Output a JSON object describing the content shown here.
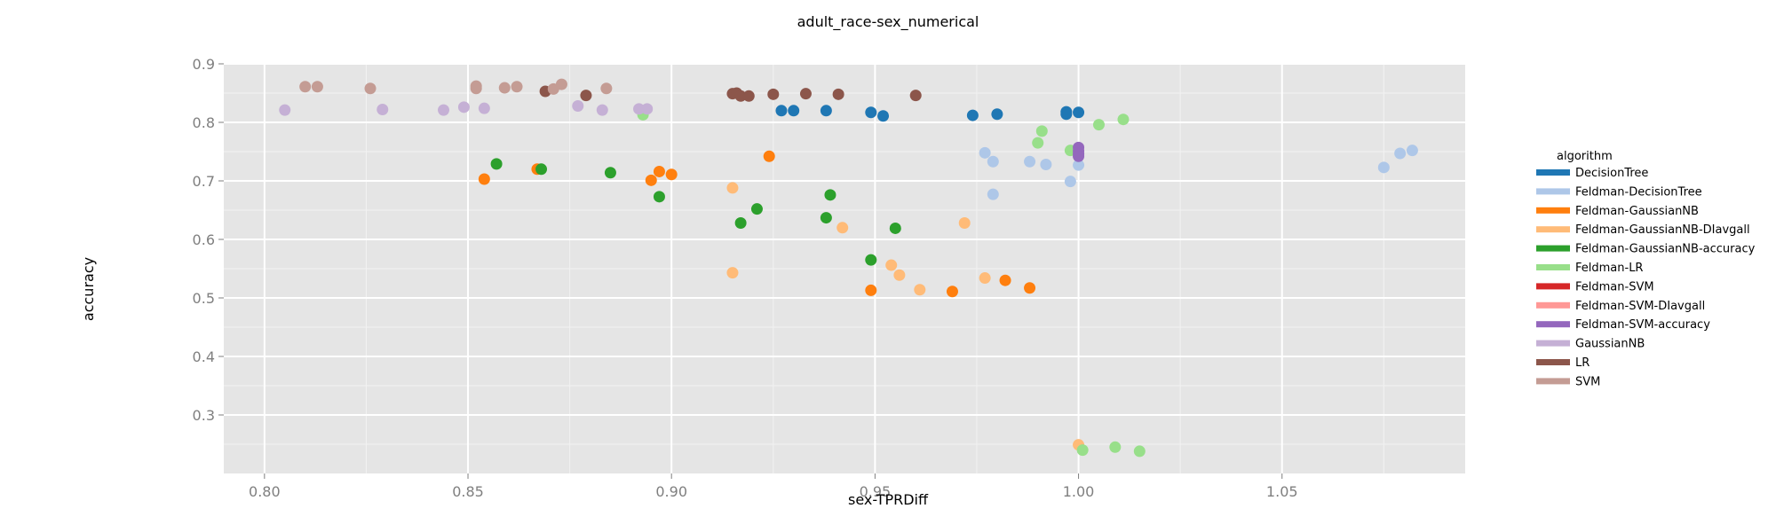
{
  "chart_data": {
    "type": "scatter",
    "title": "adult_race-sex_numerical",
    "xlabel": "sex-TPRDiff",
    "ylabel": "accuracy",
    "xlim": [
      0.79,
      1.095
    ],
    "ylim": [
      0.2,
      0.9
    ],
    "x_ticks": [
      "0.80",
      "0.85",
      "0.90",
      "0.95",
      "1.00",
      "1.05"
    ],
    "y_ticks": [
      "0.3",
      "0.4",
      "0.5",
      "0.6",
      "0.7",
      "0.8",
      "0.9"
    ],
    "grid": true,
    "legend": {
      "title": "algorithm",
      "placement": "right"
    },
    "series": [
      {
        "name": "DecisionTree",
        "color": "#1f77b4",
        "points": [
          [
            0.927,
            0.82
          ],
          [
            0.93,
            0.82
          ],
          [
            0.938,
            0.82
          ],
          [
            0.949,
            0.817
          ],
          [
            0.952,
            0.811
          ],
          [
            0.974,
            0.812
          ],
          [
            0.98,
            0.814
          ],
          [
            0.997,
            0.818
          ],
          [
            0.997,
            0.814
          ],
          [
            1.0,
            0.817
          ]
        ]
      },
      {
        "name": "Feldman-DecisionTree",
        "color": "#aec7e8",
        "points": [
          [
            0.977,
            0.748
          ],
          [
            0.979,
            0.733
          ],
          [
            0.979,
            0.677
          ],
          [
            0.988,
            0.733
          ],
          [
            0.992,
            0.728
          ],
          [
            0.998,
            0.699
          ],
          [
            1.0,
            0.727
          ],
          [
            1.075,
            0.723
          ],
          [
            1.079,
            0.747
          ],
          [
            1.082,
            0.752
          ]
        ]
      },
      {
        "name": "Feldman-GaussianNB",
        "color": "#ff7f0e",
        "points": [
          [
            0.854,
            0.703
          ],
          [
            0.867,
            0.72
          ],
          [
            0.895,
            0.701
          ],
          [
            0.897,
            0.716
          ],
          [
            0.9,
            0.711
          ],
          [
            0.924,
            0.742
          ],
          [
            0.949,
            0.513
          ],
          [
            0.969,
            0.511
          ],
          [
            0.982,
            0.53
          ],
          [
            0.988,
            0.517
          ]
        ]
      },
      {
        "name": "Feldman-GaussianNB-DIavgall",
        "color": "#ffbb78",
        "points": [
          [
            0.915,
            0.688
          ],
          [
            0.915,
            0.543
          ],
          [
            0.942,
            0.62
          ],
          [
            0.954,
            0.556
          ],
          [
            0.956,
            0.539
          ],
          [
            0.961,
            0.514
          ],
          [
            0.972,
            0.628
          ],
          [
            0.977,
            0.534
          ],
          [
            1.0,
            0.249
          ]
        ]
      },
      {
        "name": "Feldman-GaussianNB-accuracy",
        "color": "#2ca02c",
        "points": [
          [
            0.857,
            0.729
          ],
          [
            0.868,
            0.72
          ],
          [
            0.885,
            0.714
          ],
          [
            0.897,
            0.673
          ],
          [
            0.917,
            0.628
          ],
          [
            0.921,
            0.652
          ],
          [
            0.938,
            0.637
          ],
          [
            0.939,
            0.676
          ],
          [
            0.949,
            0.565
          ],
          [
            0.955,
            0.619
          ]
        ]
      },
      {
        "name": "Feldman-LR",
        "color": "#98df8a",
        "points": [
          [
            0.893,
            0.813
          ],
          [
            0.99,
            0.765
          ],
          [
            0.991,
            0.785
          ],
          [
            0.998,
            0.752
          ],
          [
            1.005,
            0.796
          ],
          [
            1.011,
            0.805
          ],
          [
            1.001,
            0.24
          ],
          [
            1.009,
            0.245
          ],
          [
            1.015,
            0.238
          ]
        ]
      },
      {
        "name": "Feldman-SVM",
        "color": "#d62728",
        "points": []
      },
      {
        "name": "Feldman-SVM-DIavgall",
        "color": "#ff9896",
        "points": []
      },
      {
        "name": "Feldman-SVM-accuracy",
        "color": "#9467bd",
        "points": [
          [
            1.0,
            0.757
          ],
          [
            1.0,
            0.751
          ],
          [
            1.0,
            0.746
          ],
          [
            1.0,
            0.742
          ]
        ]
      },
      {
        "name": "GaussianNB",
        "color": "#c5b0d5",
        "points": [
          [
            0.805,
            0.821
          ],
          [
            0.829,
            0.822
          ],
          [
            0.844,
            0.821
          ],
          [
            0.849,
            0.826
          ],
          [
            0.854,
            0.824
          ],
          [
            0.877,
            0.828
          ],
          [
            0.883,
            0.821
          ],
          [
            0.892,
            0.823
          ],
          [
            0.894,
            0.823
          ]
        ]
      },
      {
        "name": "LR",
        "color": "#8c564b",
        "points": [
          [
            0.869,
            0.853
          ],
          [
            0.879,
            0.846
          ],
          [
            0.915,
            0.849
          ],
          [
            0.916,
            0.85
          ],
          [
            0.917,
            0.845
          ],
          [
            0.919,
            0.845
          ],
          [
            0.925,
            0.848
          ],
          [
            0.933,
            0.849
          ],
          [
            0.941,
            0.848
          ],
          [
            0.96,
            0.846
          ]
        ]
      },
      {
        "name": "SVM",
        "color": "#c49c94",
        "points": [
          [
            0.81,
            0.861
          ],
          [
            0.813,
            0.861
          ],
          [
            0.826,
            0.858
          ],
          [
            0.852,
            0.858
          ],
          [
            0.852,
            0.862
          ],
          [
            0.859,
            0.859
          ],
          [
            0.862,
            0.861
          ],
          [
            0.871,
            0.857
          ],
          [
            0.873,
            0.865
          ],
          [
            0.884,
            0.858
          ]
        ]
      }
    ]
  }
}
